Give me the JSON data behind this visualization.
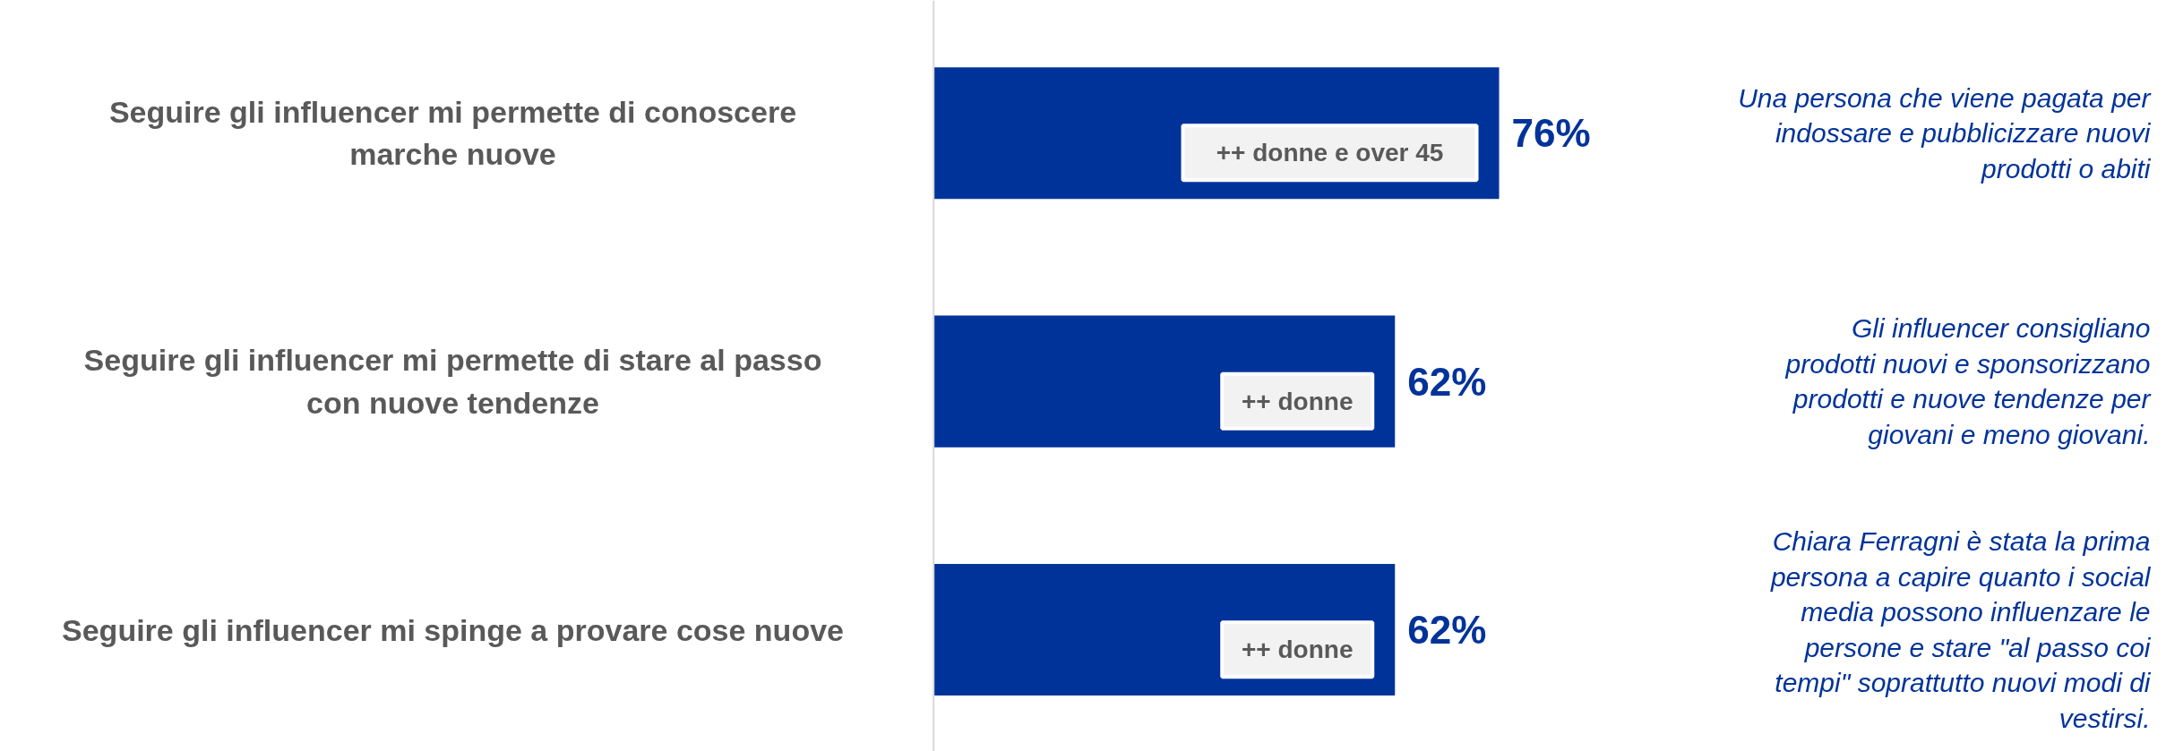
{
  "chart_data": {
    "type": "bar",
    "orientation": "horizontal",
    "categories": [
      "Seguire gli influencer mi permette di conoscere marche nuove",
      "Seguire gli influencer mi permette di stare al passo con nuove tendenze",
      "Seguire gli influencer mi spinge a provare cose nuove"
    ],
    "values": [
      76,
      62,
      62
    ],
    "color": "#00339a",
    "value_labels": [
      "76%",
      "62%",
      "62%"
    ],
    "grid": false,
    "annotations": [
      "++ donne e over 45",
      "++ donne",
      "++ donne",
      "Una persona che viene pagata per indossare e pubblicizzare nuovi prodotti o abiti",
      "Gli influencer consigliano prodotti nuovi e sponsorizzano prodotti e nuove tendenze per giovani e meno giovani.",
      "Chiara Ferragni è stata la prima persona a capire quanto i social media possono influenzare le persone e stare \"al passo coi tempi\" soprattutto nuovi modi di vestirsi."
    ]
  }
}
